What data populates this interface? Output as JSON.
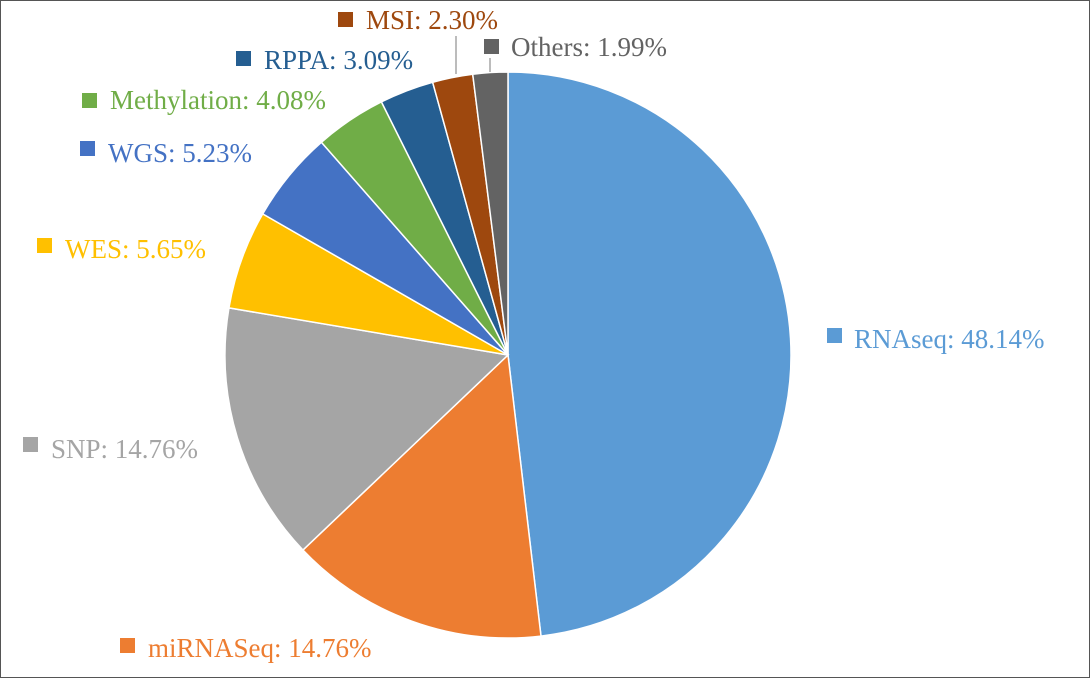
{
  "chart_data": {
    "type": "pie",
    "title": "",
    "slices": [
      {
        "label": "RNAseq",
        "value": 48.14,
        "display": "RNAseq: 48.14%",
        "color": "#5b9bd5"
      },
      {
        "label": "miRNASeq",
        "value": 14.76,
        "display": "miRNASeq: 14.76%",
        "color": "#ed7d31"
      },
      {
        "label": "SNP",
        "value": 14.76,
        "display": "SNP: 14.76%",
        "color": "#a5a5a5"
      },
      {
        "label": "WES",
        "value": 5.65,
        "display": "WES: 5.65%",
        "color": "#ffc000"
      },
      {
        "label": "WGS",
        "value": 5.23,
        "display": "WGS: 5.23%",
        "color": "#4472c4"
      },
      {
        "label": "Methylation",
        "value": 4.08,
        "display": "Methylation: 4.08%",
        "color": "#70ad47"
      },
      {
        "label": "RPPA",
        "value": 3.09,
        "display": "RPPA: 3.09%",
        "color": "#255e91"
      },
      {
        "label": "MSI",
        "value": 2.3,
        "display": "MSI: 2.30%",
        "color": "#9e480e"
      },
      {
        "label": "Others",
        "value": 1.99,
        "display": "Others: 1.99%",
        "color": "#636363"
      }
    ],
    "legend": "none",
    "data_labels": "outside"
  }
}
